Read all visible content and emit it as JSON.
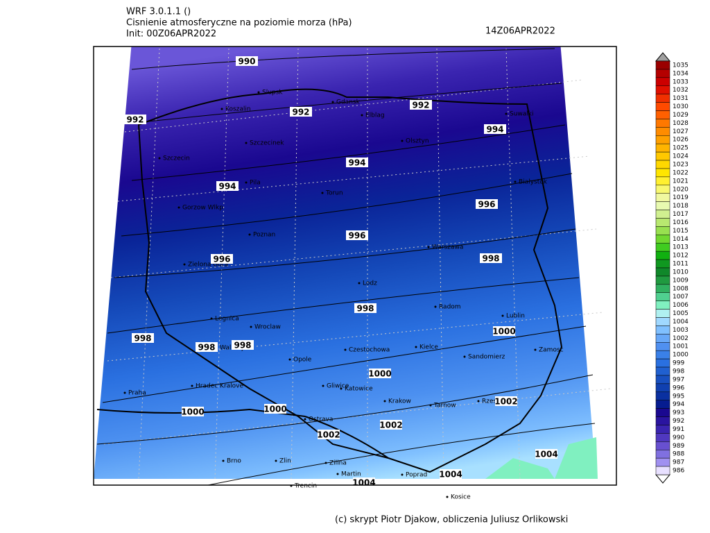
{
  "header": {
    "model": "WRF 3.0.1.1 ()",
    "title": "Cisnienie atmosferyczne na poziomie morza (hPa)",
    "init": "Init: 00Z06APR2022",
    "valid": "14Z06APR2022"
  },
  "footer": "(c) skrypt Piotr Djakow, obliczenia Juliusz Orlikowski",
  "cities": [
    "Slupsk",
    "Koszalin",
    "Gdansk",
    "Elblag",
    "Suwalki",
    "Olsztyn",
    "Szczecinek",
    "Szczecin",
    "Pila",
    "Torun",
    "Bialystok",
    "Gorzow Wlkp",
    "Poznan",
    "Warszawa",
    "Zielona Gora",
    "Lodz",
    "Radom",
    "Lublin",
    "Legnica",
    "Wroclaw",
    "Czestochowa",
    "Kielce",
    "Sandomierz",
    "Zamosc",
    "Opole",
    "Praha",
    "Hradec Kralove",
    "Walbrzych",
    "Gliwice",
    "Katowice",
    "Krakow",
    "Tarnow",
    "Rzeszow",
    "Ostrava",
    "Brno",
    "Zlin",
    "Zilina",
    "Martin",
    "Poprad",
    "Trencin",
    "Kosice"
  ],
  "contour_labels": [
    990,
    992,
    992,
    992,
    994,
    994,
    994,
    996,
    996,
    996,
    998,
    998,
    998,
    998,
    998,
    1000,
    1000,
    1000,
    1000,
    1002,
    1002,
    1002,
    1004,
    1004,
    1004
  ],
  "colorbar": {
    "values": [
      1035,
      1034,
      1033,
      1032,
      1031,
      1030,
      1029,
      1028,
      1027,
      1026,
      1025,
      1024,
      1023,
      1022,
      1021,
      1020,
      1019,
      1018,
      1017,
      1016,
      1015,
      1014,
      1013,
      1012,
      1011,
      1010,
      1009,
      1008,
      1007,
      1006,
      1005,
      1004,
      1003,
      1002,
      1001,
      1000,
      999,
      998,
      997,
      996,
      995,
      994,
      993,
      992,
      991,
      990,
      989,
      988,
      987,
      986
    ],
    "colors": [
      "#9a0000",
      "#b40000",
      "#cc0000",
      "#e01000",
      "#f03000",
      "#ff4a00",
      "#ff6000",
      "#ff7800",
      "#ff8c00",
      "#ffa000",
      "#ffb400",
      "#ffc800",
      "#ffd800",
      "#ffe600",
      "#fff030",
      "#f8f870",
      "#f0f8a0",
      "#e8fab0",
      "#d0f090",
      "#b8e870",
      "#98e050",
      "#70d830",
      "#40cc20",
      "#10b010",
      "#109820",
      "#10882a",
      "#209a40",
      "#30b060",
      "#50d090",
      "#80f0c0",
      "#b0f0f0",
      "#a0d8ff",
      "#80c0ff",
      "#68a8f8",
      "#5090f0",
      "#3a80e8",
      "#2a70e0",
      "#2060d0",
      "#1850c0",
      "#1040b0",
      "#0a30a0",
      "#061c90",
      "#1a0890",
      "#2a14a0",
      "#3a24b0",
      "#5038c0",
      "#6850d0",
      "#8070e0",
      "#a090f0",
      "#e8e0ff"
    ]
  }
}
